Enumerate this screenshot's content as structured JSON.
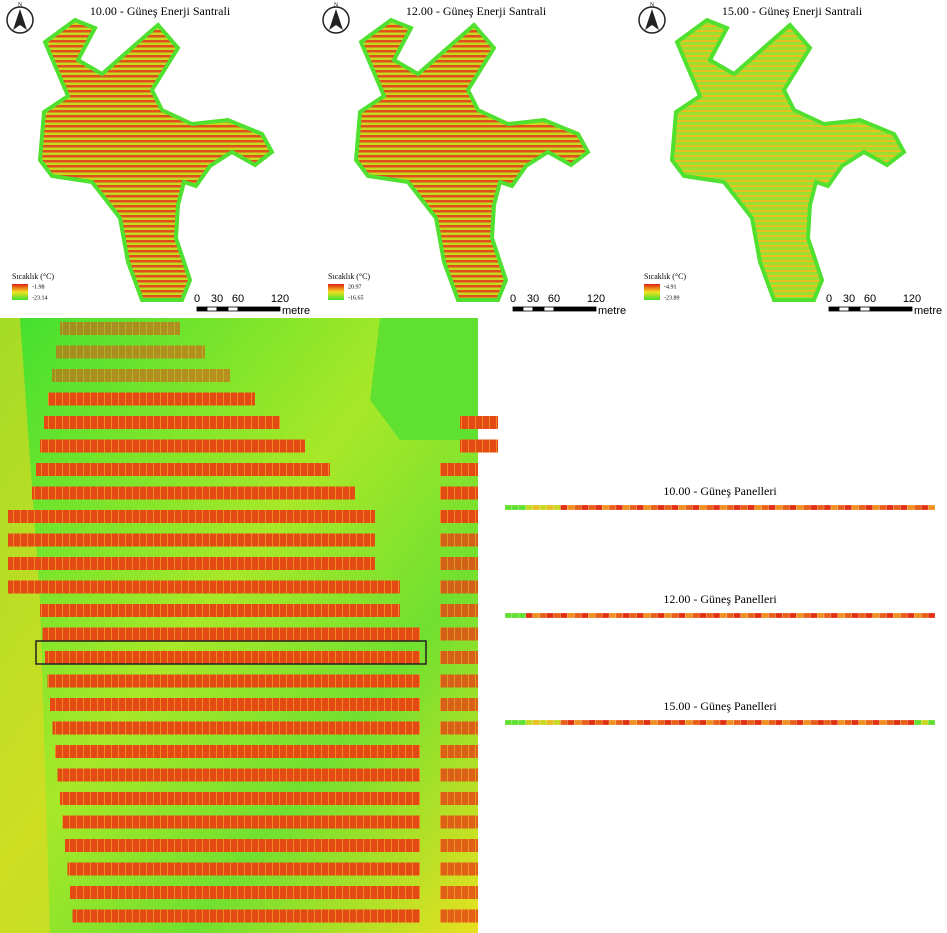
{
  "north": "N",
  "maps": [
    {
      "title": "10.00 - Güneş Enerji Santrali",
      "legend": {
        "label": "Sıcaklık (°C)",
        "max": "-1.98",
        "min": "-23.14"
      }
    },
    {
      "title": "12.00 - Güneş Enerji Santrali",
      "legend": {
        "label": "Sıcaklık (°C)",
        "max": "20.97",
        "min": "-16.65"
      }
    },
    {
      "title": "15.00 - Güneş Enerji Santrali",
      "legend": {
        "label": "Sıcaklık (°C)",
        "max": "-4.91",
        "min": "-23.89"
      }
    }
  ],
  "scale": {
    "ticks": [
      "0",
      "30",
      "60",
      "120"
    ],
    "unit": "metre"
  },
  "panels": [
    {
      "title": "10.00 - Güneş Panelleri"
    },
    {
      "title": "12.00 - Güneş Panelleri"
    },
    {
      "title": "15.00 - Güneş Panelleri"
    }
  ]
}
